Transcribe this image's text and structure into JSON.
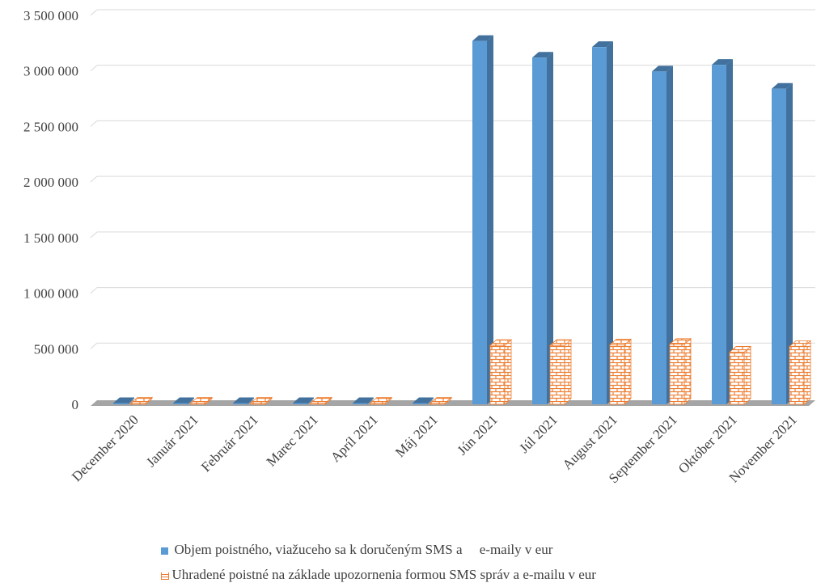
{
  "chart_data": {
    "type": "bar",
    "categories": [
      "December 2020",
      "Január 2021",
      "Február 2021",
      "Marec 2021",
      "Apríl 2021",
      "Máj 2021",
      "Jún 2021",
      "Júl 2021",
      "August 2021",
      "September 2021",
      "Október 2021",
      "November 2021"
    ],
    "series": [
      {
        "name": "Objem poistného, viažuceho sa k doručeným SMS a     e-maily v eur",
        "color": "#5B9BD5",
        "values": [
          0,
          0,
          0,
          0,
          0,
          0,
          3270000,
          3120000,
          3215000,
          2995000,
          3055000,
          2840000
        ]
      },
      {
        "name": "Uhradené poistné na základe upozornenia formou SMS správ a e-mailu v eur",
        "color": "#ED7D31",
        "values": [
          0,
          0,
          0,
          0,
          0,
          0,
          530000,
          530000,
          535000,
          540000,
          470000,
          520000
        ]
      }
    ],
    "yticks": [
      "0",
      "500 000",
      "1 000 000",
      "1 500 000",
      "2 000 000",
      "2 500 000",
      "3 000 000",
      "3 500 000"
    ],
    "ylim": [
      0,
      3500000
    ],
    "grid": true,
    "legend_position": "bottom",
    "style": "3d"
  }
}
